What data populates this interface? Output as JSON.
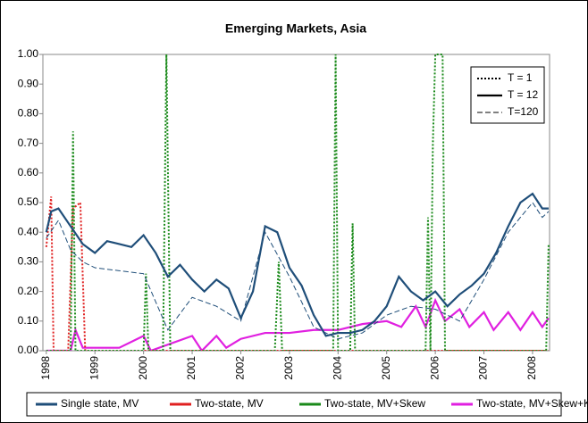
{
  "chart_data": {
    "type": "line",
    "title": "Emerging Markets, Asia",
    "xlim": [
      1997.93,
      2008.35
    ],
    "xticks": [
      1998,
      1999,
      2000,
      2001,
      2002,
      2003,
      2004,
      2005,
      2006,
      2007,
      2008
    ],
    "ylim": [
      0,
      1
    ],
    "yticks": [
      {
        "value": 0,
        "label": "0.00"
      },
      {
        "value": 0.1,
        "label": "0.10"
      },
      {
        "value": 0.2,
        "label": "0.20"
      },
      {
        "value": 0.3,
        "label": "0.30"
      },
      {
        "value": 0.4,
        "label": "0.40"
      },
      {
        "value": 0.5,
        "label": "0.50"
      },
      {
        "value": 0.6,
        "label": "0.60"
      },
      {
        "value": 0.7,
        "label": "0.70"
      },
      {
        "value": 0.8,
        "label": "0.80"
      },
      {
        "value": 0.9,
        "label": "0.90"
      },
      {
        "value": 1,
        "label": "1.00"
      }
    ],
    "grid": false,
    "legend_horizons": [
      {
        "name": "T = 1",
        "style": "dotted"
      },
      {
        "name": "T = 12",
        "style": "solid"
      },
      {
        "name": "T=120",
        "style": "dashed"
      }
    ],
    "legend_models": [
      {
        "name": "Single state, MV",
        "color": "#1f4e79"
      },
      {
        "name": "Two-state, MV",
        "color": "#e02020"
      },
      {
        "name": "Two-state, MV+Skew",
        "color": "#1a8a1a"
      },
      {
        "name": "Two-state, MV+Skew+Kurtosis",
        "color": "#e020e0"
      }
    ],
    "series": [
      {
        "model": "Two-state, MV+Skew+Kurtosis",
        "horizon": "T = 12",
        "x": [
          1998,
          1998.5,
          1998.6,
          1998.75,
          1999,
          1999.5,
          2000,
          2000.15,
          2001,
          2001.2,
          2001.5,
          2001.7,
          2002,
          2002.5,
          2003,
          2003.5,
          2004,
          2004.5,
          2005,
          2005.3,
          2005.6,
          2005.8,
          2006,
          2006.2,
          2006.5,
          2006.7,
          2007,
          2007.2,
          2007.5,
          2007.75,
          2008,
          2008.2,
          2008.33
        ],
        "values": [
          0,
          0,
          0.07,
          0.01,
          0.01,
          0.01,
          0.05,
          0,
          0.05,
          0,
          0.05,
          0.01,
          0.04,
          0.06,
          0.06,
          0.07,
          0.07,
          0.09,
          0.1,
          0.08,
          0.15,
          0.08,
          0.17,
          0.1,
          0.14,
          0.08,
          0.13,
          0.07,
          0.13,
          0.07,
          0.13,
          0.08,
          0.11
        ]
      },
      {
        "model": "Two-state, MV",
        "horizon": "T = 1",
        "x": [
          1998,
          1998.1,
          1998.15,
          1998.45,
          1998.55,
          1998.7,
          1998.8,
          2008.33
        ],
        "values": [
          0.35,
          0.52,
          0,
          0,
          0.48,
          0.5,
          0,
          0
        ]
      },
      {
        "model": "Two-state, MV+Skew",
        "horizon": "T = 1",
        "x": [
          1998,
          1998.5,
          1998.55,
          1998.6,
          2000,
          2000.05,
          2000.1,
          2000.4,
          2000.47,
          2000.55,
          2002.7,
          2002.78,
          2002.85,
          2003.9,
          2003.95,
          2004,
          2004.25,
          2004.3,
          2004.35,
          2005.8,
          2005.85,
          2005.9,
          2005.95,
          2006,
          2006.15,
          2006.2,
          2008.28,
          2008.33
        ],
        "values": [
          0,
          0,
          0.74,
          0,
          0,
          0.26,
          0,
          0,
          1,
          0,
          0,
          0.3,
          0,
          0,
          1,
          0,
          0,
          0.43,
          0,
          0,
          0.45,
          0,
          0.7,
          1,
          1,
          0,
          0,
          0.36
        ]
      },
      {
        "model": "Single state, MV",
        "horizon": "T=120",
        "x": [
          1998,
          1998.25,
          1998.5,
          1998.75,
          1999,
          1999.5,
          2000,
          2000.5,
          2001,
          2001.5,
          2002,
          2002.5,
          2003,
          2003.5,
          2004,
          2004.5,
          2005,
          2005.5,
          2006,
          2006.5,
          2007,
          2007.5,
          2008,
          2008.2,
          2008.33
        ],
        "values": [
          0.38,
          0.44,
          0.34,
          0.3,
          0.28,
          0.27,
          0.26,
          0.07,
          0.18,
          0.15,
          0.1,
          0.4,
          0.25,
          0.08,
          0.04,
          0.06,
          0.12,
          0.15,
          0.14,
          0.1,
          0.24,
          0.4,
          0.5,
          0.45,
          0.47
        ]
      },
      {
        "model": "Single state, MV",
        "horizon": "T = 12",
        "x": [
          1998,
          1998.1,
          1998.25,
          1998.5,
          1998.75,
          1999,
          1999.25,
          1999.5,
          1999.75,
          2000,
          2000.25,
          2000.5,
          2000.75,
          2001,
          2001.25,
          2001.5,
          2001.75,
          2002,
          2002.25,
          2002.5,
          2002.75,
          2003,
          2003.25,
          2003.5,
          2003.75,
          2004,
          2004.25,
          2004.5,
          2004.75,
          2005,
          2005.25,
          2005.5,
          2005.75,
          2006,
          2006.25,
          2006.5,
          2006.75,
          2007,
          2007.25,
          2007.5,
          2007.75,
          2008,
          2008.2,
          2008.33
        ],
        "values": [
          0.4,
          0.47,
          0.48,
          0.42,
          0.36,
          0.33,
          0.37,
          0.36,
          0.35,
          0.39,
          0.33,
          0.25,
          0.29,
          0.24,
          0.2,
          0.24,
          0.21,
          0.11,
          0.2,
          0.42,
          0.4,
          0.28,
          0.22,
          0.12,
          0.05,
          0.06,
          0.06,
          0.07,
          0.1,
          0.15,
          0.25,
          0.2,
          0.17,
          0.2,
          0.15,
          0.19,
          0.22,
          0.26,
          0.33,
          0.42,
          0.5,
          0.53,
          0.48,
          0.48
        ]
      }
    ]
  }
}
